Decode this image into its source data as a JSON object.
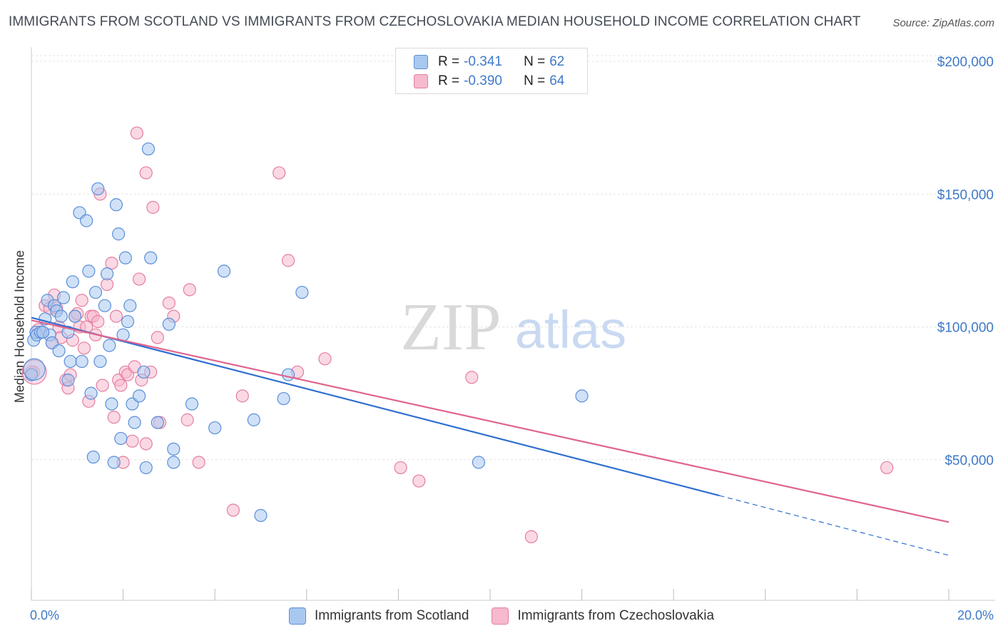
{
  "title": "IMMIGRANTS FROM SCOTLAND VS IMMIGRANTS FROM CZECHOSLOVAKIA MEDIAN HOUSEHOLD INCOME CORRELATION CHART",
  "source": "Source: ZipAtlas.com",
  "watermark": {
    "zip": "ZIP",
    "atlas": "atlas"
  },
  "legend_top": {
    "rows": [
      {
        "r_label": "R = ",
        "r_value": "-0.341",
        "n_label": "N = ",
        "n_value": "62"
      },
      {
        "r_label": "R = ",
        "r_value": "-0.390",
        "n_label": "N = ",
        "n_value": "64"
      }
    ]
  },
  "legend_bottom": [
    "Immigrants from Scotland",
    "Immigrants from Czechoslovakia"
  ],
  "colors": {
    "blue_fill": "#a9c8f0",
    "blue_stroke": "#5b8fd8",
    "blue_line": "#2f6fd1",
    "pink_fill": "#f6b9cd",
    "pink_stroke": "#e57ea0",
    "pink_line": "#e0648d",
    "tick_text": "#3f79c8",
    "grid": "#e3e3e3"
  },
  "chart_data": {
    "type": "scatter",
    "title": "IMMIGRANTS FROM SCOTLAND VS IMMIGRANTS FROM CZECHOSLOVAKIA MEDIAN HOUSEHOLD INCOME CORRELATION CHART",
    "xlabel": "",
    "ylabel": "Median Household Income",
    "xlim": [
      0,
      20
    ],
    "ylim": [
      0,
      205000
    ],
    "x_tick_labels": [
      {
        "value": 0,
        "label": "0.0%"
      },
      {
        "value": 20,
        "label": "20.0%"
      }
    ],
    "y_tick_labels": [
      {
        "value": 50000,
        "label": "$50,000"
      },
      {
        "value": 100000,
        "label": "$100,000"
      },
      {
        "value": 150000,
        "label": "$150,000"
      },
      {
        "value": 200000,
        "label": "$200,000"
      }
    ],
    "grid": true,
    "legend_position": "bottom",
    "series": [
      {
        "name": "Immigrants from Scotland",
        "color": "#5b8fd8",
        "points": [
          [
            0.05,
            95000
          ],
          [
            0.1,
            98000
          ],
          [
            0.12,
            97000
          ],
          [
            0.2,
            98000
          ],
          [
            0.3,
            103000
          ],
          [
            0.35,
            110000
          ],
          [
            0.4,
            97000
          ],
          [
            0.45,
            94000
          ],
          [
            0.5,
            108000
          ],
          [
            0.55,
            106000
          ],
          [
            0.6,
            91000
          ],
          [
            0.65,
            104000
          ],
          [
            0.7,
            111000
          ],
          [
            0.8,
            98000
          ],
          [
            0.8,
            80000
          ],
          [
            0.85,
            87000
          ],
          [
            0.9,
            117000
          ],
          [
            0.95,
            104000
          ],
          [
            1.05,
            143000
          ],
          [
            1.1,
            87000
          ],
          [
            1.2,
            140000
          ],
          [
            1.25,
            121000
          ],
          [
            1.3,
            75000
          ],
          [
            1.35,
            51000
          ],
          [
            1.4,
            113000
          ],
          [
            1.45,
            152000
          ],
          [
            1.5,
            87000
          ],
          [
            1.6,
            108000
          ],
          [
            1.65,
            120000
          ],
          [
            1.7,
            93000
          ],
          [
            1.75,
            71000
          ],
          [
            1.8,
            49000
          ],
          [
            1.85,
            146000
          ],
          [
            1.9,
            135000
          ],
          [
            1.95,
            58000
          ],
          [
            2.0,
            97000
          ],
          [
            2.05,
            126000
          ],
          [
            2.1,
            102000
          ],
          [
            2.15,
            108000
          ],
          [
            2.2,
            71000
          ],
          [
            2.25,
            64000
          ],
          [
            2.35,
            74000
          ],
          [
            2.45,
            83000
          ],
          [
            2.5,
            47000
          ],
          [
            2.55,
            167000
          ],
          [
            2.6,
            126000
          ],
          [
            2.75,
            64000
          ],
          [
            3.0,
            101000
          ],
          [
            3.1,
            54000
          ],
          [
            3.1,
            49000
          ],
          [
            3.5,
            71000
          ],
          [
            4.0,
            62000
          ],
          [
            4.2,
            121000
          ],
          [
            4.85,
            65000
          ],
          [
            5.0,
            29000
          ],
          [
            5.5,
            73000
          ],
          [
            5.6,
            82000
          ],
          [
            5.9,
            113000
          ],
          [
            9.75,
            49000
          ],
          [
            12.0,
            74000
          ],
          [
            0.0,
            82000
          ],
          [
            0.25,
            98000
          ]
        ]
      },
      {
        "name": "Immigrants from Czechoslovakia",
        "color": "#e57ea0",
        "points": [
          [
            0.05,
            83000
          ],
          [
            0.15,
            99000
          ],
          [
            0.25,
            98000
          ],
          [
            0.3,
            108000
          ],
          [
            0.4,
            107000
          ],
          [
            0.45,
            94000
          ],
          [
            0.5,
            112000
          ],
          [
            0.55,
            107000
          ],
          [
            0.6,
            100000
          ],
          [
            0.65,
            96000
          ],
          [
            0.75,
            80000
          ],
          [
            0.8,
            77000
          ],
          [
            0.85,
            82000
          ],
          [
            0.9,
            95000
          ],
          [
            0.95,
            104000
          ],
          [
            1.0,
            105000
          ],
          [
            1.05,
            100000
          ],
          [
            1.1,
            110000
          ],
          [
            1.15,
            92000
          ],
          [
            1.2,
            100000
          ],
          [
            1.25,
            72000
          ],
          [
            1.3,
            104000
          ],
          [
            1.35,
            104000
          ],
          [
            1.4,
            97000
          ],
          [
            1.45,
            102000
          ],
          [
            1.5,
            150000
          ],
          [
            1.55,
            78000
          ],
          [
            1.65,
            116000
          ],
          [
            1.75,
            124000
          ],
          [
            1.8,
            66000
          ],
          [
            1.85,
            104000
          ],
          [
            1.9,
            80000
          ],
          [
            1.95,
            78000
          ],
          [
            2.0,
            49000
          ],
          [
            2.05,
            83000
          ],
          [
            2.1,
            82000
          ],
          [
            2.2,
            57000
          ],
          [
            2.25,
            85000
          ],
          [
            2.3,
            173000
          ],
          [
            2.35,
            118000
          ],
          [
            2.4,
            80000
          ],
          [
            2.5,
            56000
          ],
          [
            2.5,
            158000
          ],
          [
            2.6,
            83000
          ],
          [
            2.65,
            145000
          ],
          [
            2.75,
            96000
          ],
          [
            2.8,
            64000
          ],
          [
            3.0,
            109000
          ],
          [
            3.1,
            104000
          ],
          [
            3.4,
            65000
          ],
          [
            3.45,
            114000
          ],
          [
            3.65,
            49000
          ],
          [
            4.4,
            31000
          ],
          [
            4.6,
            74000
          ],
          [
            5.4,
            158000
          ],
          [
            5.6,
            125000
          ],
          [
            5.8,
            83000
          ],
          [
            6.4,
            88000
          ],
          [
            8.05,
            47000
          ],
          [
            8.45,
            42000
          ],
          [
            9.6,
            81000
          ],
          [
            10.9,
            21000
          ],
          [
            18.65,
            47000
          ],
          [
            0.0,
            83000
          ]
        ]
      }
    ],
    "trend_lines": [
      {
        "series": "Immigrants from Scotland",
        "x_start": 0.0,
        "y_start": 103500,
        "x_solid_end": 15.0,
        "y_solid_end": 36500,
        "x_end": 20.0,
        "y_end": 14000
      },
      {
        "series": "Immigrants from Czechoslovakia",
        "x_start": 0.0,
        "y_start": 102500,
        "x_end": 20.0,
        "y_end": 26500
      }
    ]
  }
}
